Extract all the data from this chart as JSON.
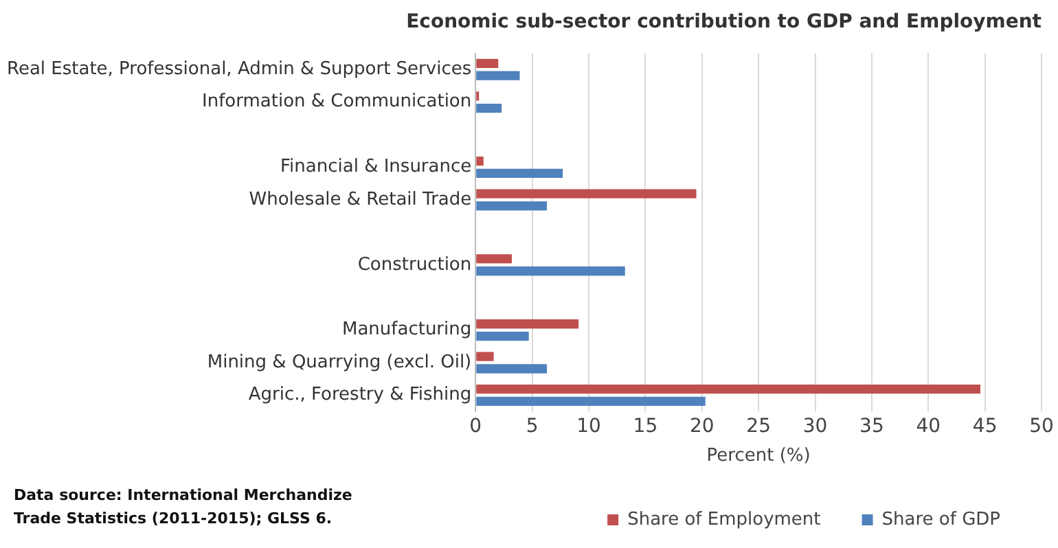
{
  "chart_data": {
    "type": "bar",
    "orientation": "horizontal",
    "title": "Economic sub-sector contribution to GDP and Employment",
    "xlabel": "Percent (%)",
    "categories": [
      "Real Estate, Professional, Admin & Support Services",
      "Information & Communication",
      null,
      "Financial & Insurance",
      "Wholesale & Retail Trade",
      null,
      "Construction",
      null,
      "Manufacturing",
      "Mining & Quarrying (excl. Oil)",
      "Agric., Forestry & Fishing"
    ],
    "series": [
      {
        "name": "Share of Employment",
        "color": "#c0504d",
        "values": [
          2.0,
          0.3,
          null,
          0.7,
          19.5,
          null,
          3.2,
          null,
          9.1,
          1.6,
          44.6
        ]
      },
      {
        "name": "Share of GDP",
        "color": "#4f81bd",
        "values": [
          3.9,
          2.3,
          null,
          7.7,
          6.3,
          null,
          13.2,
          null,
          4.7,
          6.3,
          20.3
        ]
      }
    ],
    "xlim": [
      0,
      50
    ],
    "xticks": [
      0,
      5,
      10,
      15,
      20,
      25,
      30,
      35,
      40,
      45,
      50
    ],
    "grid": "x",
    "legend": "bottom",
    "annotations": [
      "Data source: International Merchandize Trade Statistics (2011-2015);  GLSS 6."
    ]
  }
}
